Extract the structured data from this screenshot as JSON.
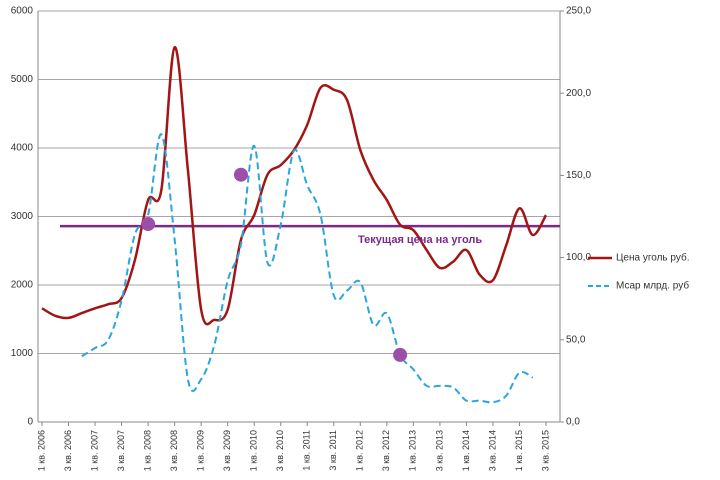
{
  "chart_data": {
    "type": "line",
    "categories": [
      "1 кв. 2006",
      null,
      "3 кв. 2006",
      null,
      "1 кв. 2007",
      null,
      "3 кв. 2007",
      null,
      "1 кв. 2008",
      null,
      "3 кв. 2008",
      null,
      "1 кв. 2009",
      null,
      "3 кв. 2009",
      null,
      "1 кв. 2010",
      null,
      "3 кв. 2010",
      null,
      "1 кв. 2011",
      null,
      "3 кв. 2011",
      null,
      "1 кв. 2012",
      null,
      "3 кв. 2012",
      null,
      "1 кв. 2013",
      null,
      "3 кв. 2013",
      null,
      "1 кв. 2014",
      null,
      "3 кв. 2014",
      null,
      "1 кв. 2015",
      null,
      "3 кв. 2015"
    ],
    "series": [
      {
        "name": "Цена уголь руб.",
        "color": "#a31515",
        "dash": false,
        "axis": "y",
        "values": [
          1660,
          1550,
          1520,
          1590,
          1660,
          1720,
          1810,
          2360,
          3240,
          3390,
          5470,
          3680,
          1640,
          1490,
          1640,
          2660,
          3020,
          3610,
          3750,
          3970,
          4340,
          4880,
          4850,
          4700,
          3970,
          3530,
          3240,
          2880,
          2800,
          2510,
          2250,
          2340,
          2510,
          2150,
          2070,
          2580,
          3120,
          2730,
          3020
        ]
      },
      {
        "name": "Мсар млрд. руб",
        "color": "#2aa6dc",
        "dash": true,
        "axis": "y2",
        "values": [
          null,
          null,
          null,
          40,
          45,
          50,
          74,
          114,
          126,
          175,
          111,
          26,
          26,
          47,
          86,
          108,
          168,
          97,
          120,
          165,
          144,
          126,
          77,
          80,
          85,
          59,
          66,
          41,
          32,
          22,
          22,
          21,
          13,
          13,
          12,
          16,
          30,
          27,
          null
        ]
      }
    ],
    "highlight_points": {
      "positions": [
        8,
        15,
        27
      ],
      "values": [
        2890,
        3610,
        980
      ],
      "color": "#9b4fa8"
    },
    "reference_line": {
      "value": 2860,
      "label": "Текущая цена на уголь",
      "color": "#7b2a8c"
    },
    "ylim": [
      0,
      6000
    ],
    "yticks": [
      0,
      1000,
      2000,
      3000,
      4000,
      5000,
      6000
    ],
    "y2lim": [
      0,
      250
    ],
    "y2ticks": [
      {
        "value": 0,
        "label": "0,0"
      },
      {
        "value": 50,
        "label": "50,0"
      },
      {
        "value": 100,
        "label": "100,0"
      },
      {
        "value": 150,
        "label": "150,0"
      },
      {
        "value": 200,
        "label": "200,0"
      },
      {
        "value": 250,
        "label": "250,0"
      }
    ],
    "grid": true,
    "legend": "right"
  }
}
